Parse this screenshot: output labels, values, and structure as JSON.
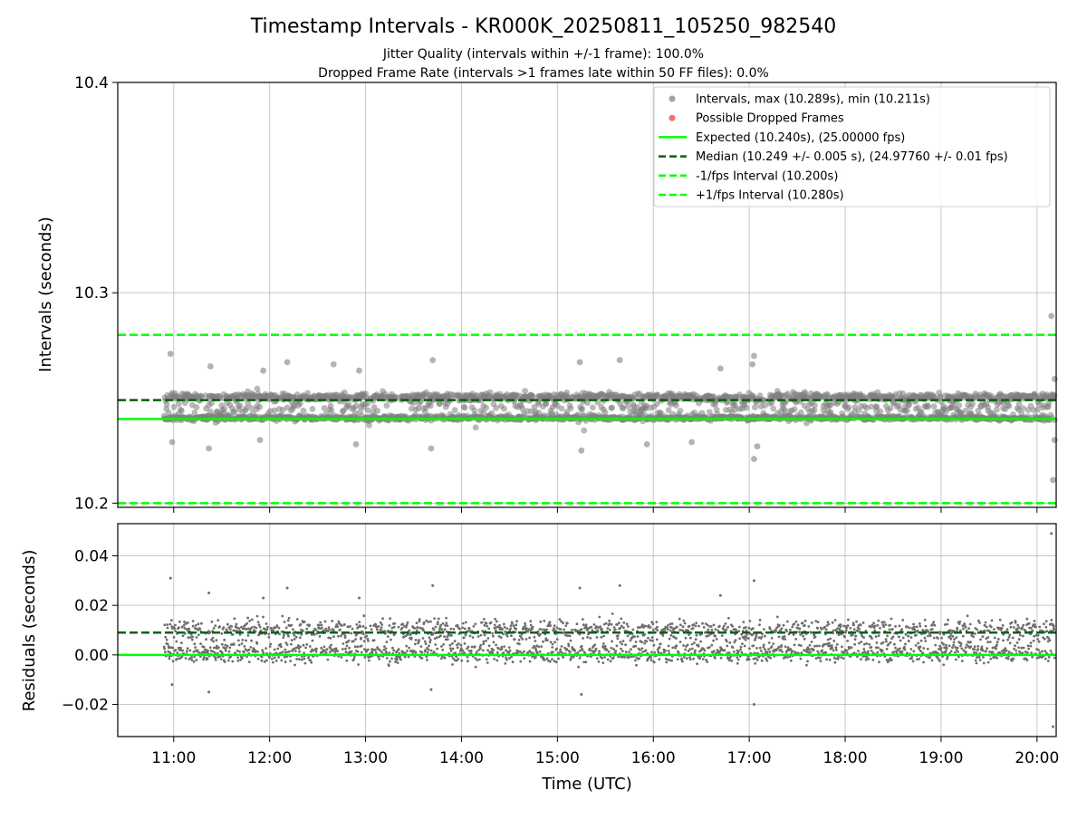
{
  "chart_data": {
    "type": "scatter",
    "title": "Timestamp Intervals - KR000K_20250811_105250_982540",
    "subtitle_lines": [
      "Jitter Quality (intervals within +/-1 frame): 100.0%",
      "Dropped Frame Rate (intervals >1 frames late within 50 FF files): 0.0%"
    ],
    "xlabel": "Time (UTC)",
    "x_time_range": [
      "10:25",
      "20:12"
    ],
    "x_ticks": [
      "11:00",
      "12:00",
      "13:00",
      "14:00",
      "15:00",
      "16:00",
      "17:00",
      "18:00",
      "19:00",
      "20:00"
    ],
    "x_data_range": [
      "10:54",
      "20:11"
    ],
    "grid": true,
    "legend_position": "top-right",
    "colors": {
      "points": "#808080",
      "dropped": "#ff0000",
      "expected": "#00ff00",
      "median": "#006400",
      "fps_interval": "#00ff00"
    },
    "top_panel": {
      "ylabel": "Intervals (seconds)",
      "ylim": [
        10.198,
        10.4
      ],
      "y_ticks": [
        "10.2",
        "10.3",
        "10.4"
      ],
      "y_tick_values": [
        10.2,
        10.3,
        10.4
      ],
      "expected": 10.24,
      "median": 10.249,
      "minus_interval": 10.2,
      "plus_interval": 10.28,
      "outlier_points": [
        {
          "t": "10:58",
          "y": 10.271
        },
        {
          "t": "11:23",
          "y": 10.265
        },
        {
          "t": "11:22",
          "y": 10.226
        },
        {
          "t": "10:59",
          "y": 10.229
        },
        {
          "t": "11:56",
          "y": 10.263
        },
        {
          "t": "12:11",
          "y": 10.267
        },
        {
          "t": "11:54",
          "y": 10.23
        },
        {
          "t": "12:40",
          "y": 10.266
        },
        {
          "t": "12:56",
          "y": 10.263
        },
        {
          "t": "12:54",
          "y": 10.228
        },
        {
          "t": "13:42",
          "y": 10.268
        },
        {
          "t": "13:41",
          "y": 10.226
        },
        {
          "t": "15:14",
          "y": 10.267
        },
        {
          "t": "15:15",
          "y": 10.225
        },
        {
          "t": "15:39",
          "y": 10.268
        },
        {
          "t": "15:56",
          "y": 10.228
        },
        {
          "t": "16:24",
          "y": 10.229
        },
        {
          "t": "16:42",
          "y": 10.264
        },
        {
          "t": "17:03",
          "y": 10.27
        },
        {
          "t": "17:02",
          "y": 10.266
        },
        {
          "t": "17:03",
          "y": 10.221
        },
        {
          "t": "17:05",
          "y": 10.227
        },
        {
          "t": "20:09",
          "y": 10.289
        },
        {
          "t": "20:10",
          "y": 10.211
        },
        {
          "t": "20:11",
          "y": 10.23
        },
        {
          "t": "20:11",
          "y": 10.259
        }
      ]
    },
    "bottom_panel": {
      "ylabel": "Residuals (seconds)",
      "ylim": [
        -0.033,
        0.053
      ],
      "y_ticks": [
        "−0.02",
        "0.00",
        "0.02",
        "0.04"
      ],
      "y_tick_values": [
        -0.02,
        0.0,
        0.02,
        0.04
      ],
      "zero_line": 0.0,
      "median_residual": 0.009,
      "outlier_points": [
        {
          "t": "10:58",
          "y": 0.031
        },
        {
          "t": "11:22",
          "y": 0.025
        },
        {
          "t": "11:22",
          "y": -0.015
        },
        {
          "t": "10:59",
          "y": -0.012
        },
        {
          "t": "11:56",
          "y": 0.023
        },
        {
          "t": "12:11",
          "y": 0.027
        },
        {
          "t": "12:56",
          "y": 0.023
        },
        {
          "t": "13:42",
          "y": 0.028
        },
        {
          "t": "13:41",
          "y": -0.014
        },
        {
          "t": "15:14",
          "y": 0.027
        },
        {
          "t": "15:15",
          "y": -0.016
        },
        {
          "t": "15:39",
          "y": 0.028
        },
        {
          "t": "16:42",
          "y": 0.024
        },
        {
          "t": "17:03",
          "y": 0.03
        },
        {
          "t": "17:03",
          "y": -0.02
        },
        {
          "t": "20:09",
          "y": 0.049
        },
        {
          "t": "20:10",
          "y": -0.029
        }
      ]
    },
    "legend": [
      {
        "label": "Intervals, max (10.289s), min (10.211s)",
        "kind": "point",
        "color": "#a0a0a0"
      },
      {
        "label": "Possible Dropped Frames",
        "kind": "point",
        "color": "#f07070"
      },
      {
        "label": "Expected (10.240s), (25.00000 fps)",
        "kind": "solid",
        "color": "#00ff00"
      },
      {
        "label": "Median (10.249 +/- 0.005 s), (24.97760 +/- 0.01 fps)",
        "kind": "dashed",
        "color": "#006400"
      },
      {
        "label": "-1/fps Interval (10.200s)",
        "kind": "dashed",
        "color": "#00ff00"
      },
      {
        "label": "+1/fps Interval (10.280s)",
        "kind": "dashed",
        "color": "#00ff00"
      }
    ]
  }
}
